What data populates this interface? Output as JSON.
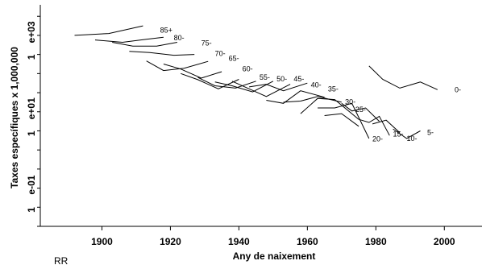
{
  "chart_data": {
    "type": "line",
    "xlabel": "Any de naixement",
    "ylabel": "Taxes específiques x 1,000,000",
    "x_ticks": [
      "1900",
      "1920",
      "1940",
      "1960",
      "1980",
      "2000"
    ],
    "y_ticks": [
      {
        "mantissa": "1",
        "exp": "e+03"
      },
      {
        "mantissa": "1",
        "exp": "e+01"
      },
      {
        "mantissa": "1",
        "exp": "e-01"
      }
    ],
    "x_range": [
      1882,
      2011
    ],
    "y_log_range": [
      -2.0,
      3.8
    ],
    "y_scale": "log",
    "grid": false,
    "legend": "none",
    "series": [
      {
        "name": "85+",
        "label_at": [
          1917,
          3.14
        ],
        "x": [
          1892,
          1902,
          1912
        ],
        "y_log": [
          3.0,
          3.05,
          3.25
        ]
      },
      {
        "name": "80-",
        "label_at": [
          1921,
          2.94
        ],
        "x": [
          1898,
          1906,
          1913,
          1918
        ],
        "y_log": [
          2.88,
          2.82,
          2.9,
          2.95
        ]
      },
      {
        "name": "75-",
        "label_at": [
          1929,
          2.8
        ],
        "x": [
          1903,
          1909,
          1916,
          1922
        ],
        "y_log": [
          2.82,
          2.72,
          2.72,
          2.82
        ]
      },
      {
        "name": "70-",
        "label_at": [
          1933,
          2.52
        ],
        "x": [
          1908,
          1914,
          1921,
          1927
        ],
        "y_log": [
          2.58,
          2.55,
          2.48,
          2.5
        ]
      },
      {
        "name": "65-",
        "label_at": [
          1937,
          2.4
        ],
        "x": [
          1913,
          1918,
          1924,
          1931
        ],
        "y_log": [
          2.33,
          2.08,
          2.14,
          2.32
        ]
      },
      {
        "name": "60-",
        "label_at": [
          1941,
          2.12
        ],
        "x": [
          1918,
          1923,
          1929,
          1935
        ],
        "y_log": [
          2.25,
          2.12,
          1.88,
          2.05
        ]
      },
      {
        "name": "55-",
        "label_at": [
          1946,
          1.9
        ],
        "x": [
          1923,
          1928,
          1934,
          1940
        ],
        "y_log": [
          2.0,
          1.84,
          1.6,
          1.85
        ]
      },
      {
        "name": "50-",
        "label_at": [
          1951,
          1.86
        ],
        "x": [
          1928,
          1933,
          1939,
          1945
        ],
        "y_log": [
          1.9,
          1.68,
          1.62,
          1.8
        ]
      },
      {
        "name": "45-",
        "label_at": [
          1956,
          1.86
        ],
        "x": [
          1933,
          1938,
          1944,
          1950
        ],
        "y_log": [
          1.78,
          1.68,
          1.52,
          1.8
        ]
      },
      {
        "name": "40-",
        "label_at": [
          1961,
          1.7
        ],
        "x": [
          1938,
          1943,
          1948,
          1955
        ],
        "y_log": [
          1.8,
          1.6,
          1.4,
          1.72
        ]
      },
      {
        "name": "35-",
        "label_at": [
          1966,
          1.6
        ],
        "x": [
          1943,
          1948,
          1953,
          1960
        ],
        "y_log": [
          1.65,
          1.72,
          1.55,
          1.75
        ]
      },
      {
        "name": "30-",
        "label_at": [
          1971,
          1.26
        ],
        "x": [
          1948,
          1953,
          1958,
          1965
        ],
        "y_log": [
          1.3,
          1.22,
          1.55,
          1.38
        ]
      },
      {
        "name": "25-",
        "label_at": [
          1974,
          1.06
        ],
        "x": [
          1953,
          1958,
          1963,
          1970
        ],
        "y_log": [
          1.25,
          1.28,
          1.4,
          1.25
        ]
      },
      {
        "name": "20-",
        "label_at": [
          1979,
          0.29
        ],
        "x": [
          1958,
          1963,
          1968,
          1975
        ],
        "y_log": [
          0.95,
          1.35,
          1.32,
          0.8
        ]
      },
      {
        "name": "15-",
        "label_at": [
          1985,
          0.41
        ],
        "x": [
          1963,
          1968,
          1973,
          1978
        ],
        "y_log": [
          1.1,
          1.1,
          1.22,
          0.3
        ]
      },
      {
        "name": "10-",
        "label_at": [
          1989,
          0.3
        ],
        "x": [
          1970,
          1973,
          1977,
          1981
        ],
        "y_log": [
          1.22,
          1.02,
          1.1,
          0.75
        ]
      },
      {
        "name": "5-",
        "label_at": [
          1995,
          0.46
        ],
        "x": [
          1975,
          1978,
          1981,
          1984
        ],
        "y_log": [
          0.8,
          0.72,
          0.88,
          0.38
        ]
      },
      {
        "name": "0-",
        "label_at": [
          2003,
          1.58
        ],
        "x": [
          1978,
          1982,
          1987,
          1993,
          1998
        ],
        "y_log": [
          2.2,
          1.85,
          1.62,
          1.78,
          1.58
        ]
      }
    ],
    "extra_segments": [
      {
        "x": [
          1985,
          1989,
          1993
        ],
        "y_log": [
          0.55,
          0.3,
          0.5
        ]
      },
      {
        "x": [
          1965,
          1970,
          1975
        ],
        "y_log": [
          0.9,
          0.95,
          0.62
        ]
      },
      {
        "x": [
          1979,
          1983,
          1987
        ],
        "y_log": [
          0.68,
          0.78,
          0.45
        ]
      }
    ]
  },
  "corner_text": "RR"
}
